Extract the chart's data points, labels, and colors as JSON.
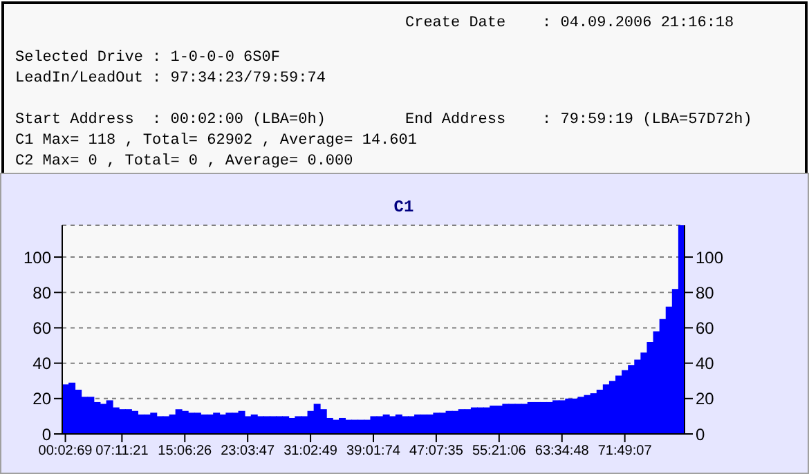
{
  "chart_data": {
    "type": "bar",
    "title": "C1",
    "annotations": [
      "Create Date    : 04.09.2006 21:16:18",
      "Selected Drive : 1-0-0-0 6S0F",
      "LeadIn/LeadOut : 97:34:23/79:59:74",
      "Start Address  : 00:02:00 (LBA=0h)",
      "End Address    : 79:59:19 (LBA=57D72h)",
      "C1 Max= 118 , Total= 62902 , Average= 14.601",
      "C2 Max= 0 , Total= 0 , Average= 0.000"
    ],
    "categories": [
      "00:02:69",
      null,
      null,
      null,
      null,
      null,
      null,
      null,
      null,
      "07:11:21",
      null,
      null,
      null,
      null,
      null,
      null,
      null,
      null,
      null,
      "15:06:26",
      null,
      null,
      null,
      null,
      null,
      null,
      null,
      null,
      null,
      "23:03:47",
      null,
      null,
      null,
      null,
      null,
      null,
      null,
      null,
      null,
      "31:02:49",
      null,
      null,
      null,
      null,
      null,
      null,
      null,
      null,
      null,
      "39:01:74",
      null,
      null,
      null,
      null,
      null,
      null,
      null,
      null,
      null,
      "47:07:35",
      null,
      null,
      null,
      null,
      null,
      null,
      null,
      null,
      null,
      "55:21:06",
      null,
      null,
      null,
      null,
      null,
      null,
      null,
      null,
      null,
      "63:34:48",
      null,
      null,
      null,
      null,
      null,
      null,
      null,
      null,
      null,
      "71:49:07",
      null,
      null,
      null,
      null,
      null,
      null,
      null,
      null,
      null
    ],
    "values": [
      28,
      29,
      25,
      21,
      21,
      18,
      17,
      19,
      15,
      14,
      14,
      13,
      11,
      11,
      12,
      10,
      10,
      11,
      14,
      13,
      12,
      12,
      11,
      11,
      12,
      11,
      12,
      12,
      13,
      10,
      11,
      10,
      10,
      10,
      10,
      10,
      9,
      10,
      10,
      13,
      17,
      14,
      9,
      8,
      9,
      8,
      8,
      8,
      8,
      10,
      10,
      11,
      10,
      11,
      10,
      10,
      11,
      11,
      11,
      12,
      12,
      13,
      13,
      14,
      14,
      15,
      15,
      15,
      16,
      16,
      17,
      17,
      17,
      17,
      18,
      18,
      18,
      18,
      19,
      19,
      20,
      20,
      21,
      22,
      23,
      25,
      28,
      30,
      33,
      36,
      39,
      42,
      46,
      52,
      58,
      65,
      72,
      82,
      118
    ],
    "color": "#0000ff",
    "ylim": [
      0,
      118
    ],
    "yticks": [
      0,
      20,
      40,
      60,
      80,
      100
    ],
    "y2lim": [
      0,
      118
    ],
    "y2ticks": [
      0,
      20,
      40,
      60,
      80,
      100
    ],
    "grid": "y"
  }
}
